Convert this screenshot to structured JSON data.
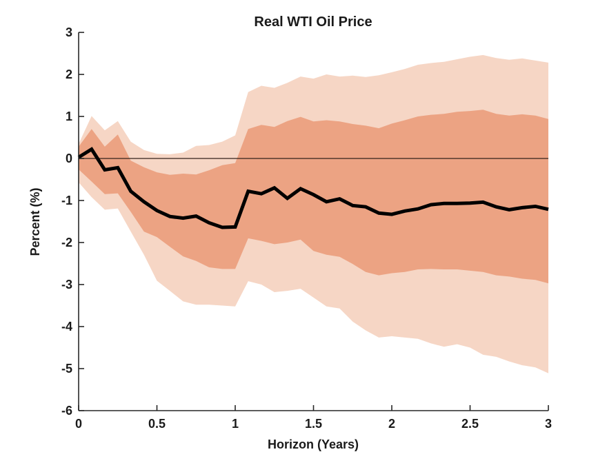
{
  "title": "Real WTI Oil Price",
  "axes": {
    "xlabel": "Horizon (Years)",
    "ylabel": "Percent (%)",
    "x_tick_labels": [
      "0",
      "0.5",
      "1",
      "1.5",
      "2",
      "2.5",
      "3"
    ],
    "y_tick_labels": [
      "3",
      "2",
      "1",
      "0",
      "-1",
      "-2",
      "-3",
      "-4",
      "-5",
      "-6"
    ]
  },
  "colors": {
    "inner_band": "#ECA383",
    "outer_band": "#F6D6C5",
    "median_line": "#000000",
    "zero_line": "#33221A",
    "axis": "#262626",
    "text": "#1A1A1A",
    "background": "#FFFFFF"
  },
  "chart_data": {
    "type": "line",
    "title": "Real WTI Oil Price",
    "xlabel": "Horizon (Years)",
    "ylabel": "Percent (%)",
    "xlim": [
      0,
      3
    ],
    "ylim": [
      -6,
      3
    ],
    "x_ticks": [
      0,
      0.5,
      1,
      1.5,
      2,
      2.5,
      3
    ],
    "y_ticks": [
      3,
      2,
      1,
      0,
      -1,
      -2,
      -3,
      -4,
      -5,
      -6
    ],
    "grid": false,
    "legend": null,
    "zero_reference_line": 0,
    "x_years": [
      0,
      0.083,
      0.167,
      0.25,
      0.333,
      0.417,
      0.5,
      0.583,
      0.667,
      0.75,
      0.833,
      0.917,
      1,
      1.083,
      1.167,
      1.25,
      1.333,
      1.417,
      1.5,
      1.583,
      1.667,
      1.75,
      1.833,
      1.917,
      2,
      2.083,
      2.167,
      2.25,
      2.333,
      2.417,
      2.5,
      2.583,
      2.667,
      2.75,
      2.833,
      2.917,
      3
    ],
    "series": [
      {
        "name": "median_irf",
        "values": [
          0.03,
          0.22,
          -0.27,
          -0.22,
          -0.78,
          -1.03,
          -1.24,
          -1.38,
          -1.42,
          -1.37,
          -1.53,
          -1.64,
          -1.63,
          -0.78,
          -0.84,
          -0.7,
          -0.95,
          -0.72,
          -0.86,
          -1.03,
          -0.96,
          -1.12,
          -1.15,
          -1.3,
          -1.33,
          -1.25,
          -1.2,
          -1.1,
          -1.07,
          -1.07,
          -1.06,
          -1.04,
          -1.15,
          -1.22,
          -1.17,
          -1.14,
          -1.21
        ]
      },
      {
        "name": "inner_band_upper",
        "values": [
          0.28,
          0.7,
          0.28,
          0.57,
          -0.05,
          -0.21,
          -0.33,
          -0.39,
          -0.36,
          -0.38,
          -0.28,
          -0.16,
          -0.11,
          0.7,
          0.8,
          0.75,
          0.89,
          0.99,
          0.88,
          0.91,
          0.88,
          0.82,
          0.78,
          0.72,
          0.83,
          0.91,
          1.0,
          1.04,
          1.06,
          1.11,
          1.13,
          1.16,
          1.06,
          1.02,
          1.05,
          1.02,
          0.94
        ]
      },
      {
        "name": "inner_band_lower",
        "values": [
          -0.26,
          -0.55,
          -0.85,
          -0.83,
          -1.27,
          -1.74,
          -1.87,
          -2.1,
          -2.33,
          -2.44,
          -2.59,
          -2.63,
          -2.63,
          -1.9,
          -1.96,
          -2.04,
          -2.0,
          -1.93,
          -2.2,
          -2.29,
          -2.34,
          -2.51,
          -2.7,
          -2.78,
          -2.73,
          -2.7,
          -2.64,
          -2.63,
          -2.64,
          -2.64,
          -2.67,
          -2.7,
          -2.78,
          -2.81,
          -2.86,
          -2.89,
          -2.97
        ]
      },
      {
        "name": "outer_band_upper",
        "values": [
          0.35,
          1.01,
          0.67,
          0.89,
          0.4,
          0.2,
          0.11,
          0.1,
          0.14,
          0.3,
          0.32,
          0.4,
          0.55,
          1.58,
          1.73,
          1.68,
          1.8,
          1.95,
          1.9,
          2.0,
          1.95,
          1.97,
          1.94,
          1.98,
          2.05,
          2.13,
          2.23,
          2.27,
          2.3,
          2.36,
          2.42,
          2.46,
          2.39,
          2.35,
          2.38,
          2.33,
          2.28
        ]
      },
      {
        "name": "outer_band_lower",
        "values": [
          -0.57,
          -0.92,
          -1.22,
          -1.19,
          -1.74,
          -2.29,
          -2.91,
          -3.15,
          -3.4,
          -3.48,
          -3.48,
          -3.5,
          -3.52,
          -2.92,
          -3.0,
          -3.18,
          -3.15,
          -3.1,
          -3.31,
          -3.52,
          -3.57,
          -3.88,
          -4.09,
          -4.26,
          -4.23,
          -4.26,
          -4.29,
          -4.4,
          -4.48,
          -4.42,
          -4.5,
          -4.67,
          -4.72,
          -4.83,
          -4.92,
          -4.97,
          -5.11
        ]
      }
    ]
  }
}
